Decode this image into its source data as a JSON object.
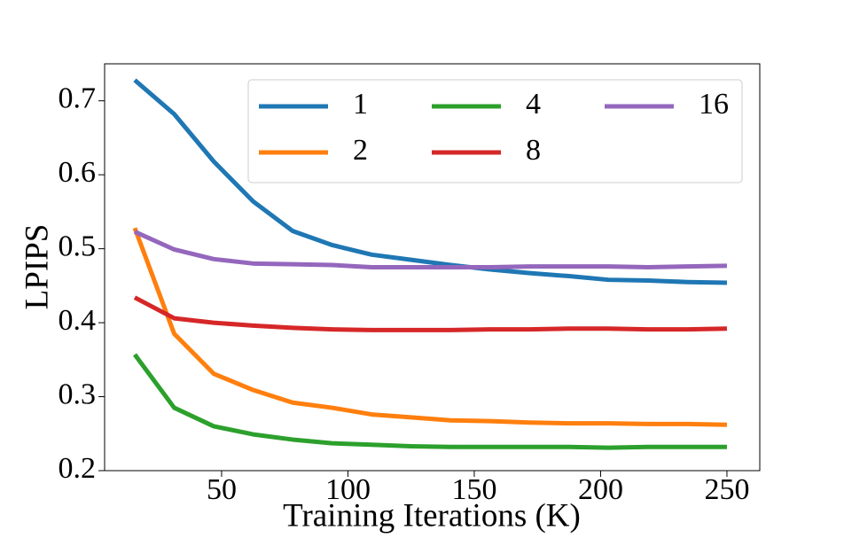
{
  "chart_data": {
    "type": "line",
    "xlabel": "Training Iterations (K)",
    "ylabel": "LPIPS",
    "x": [
      15.625,
      31.25,
      46.875,
      62.5,
      78.125,
      93.75,
      109.375,
      125,
      140.625,
      156.25,
      171.875,
      187.5,
      203.125,
      218.75,
      234.375,
      250
    ],
    "series": [
      {
        "name": "1",
        "color": "#1f77b4",
        "values": [
          0.728,
          0.682,
          0.618,
          0.564,
          0.524,
          0.505,
          0.492,
          0.485,
          0.478,
          0.472,
          0.467,
          0.463,
          0.458,
          0.457,
          0.455,
          0.454
        ]
      },
      {
        "name": "2",
        "color": "#ff7f0e",
        "values": [
          0.528,
          0.385,
          0.331,
          0.309,
          0.292,
          0.285,
          0.276,
          0.272,
          0.268,
          0.267,
          0.265,
          0.264,
          0.264,
          0.263,
          0.263,
          0.262
        ]
      },
      {
        "name": "4",
        "color": "#2ca02c",
        "values": [
          0.357,
          0.285,
          0.26,
          0.249,
          0.242,
          0.237,
          0.235,
          0.233,
          0.232,
          0.232,
          0.232,
          0.232,
          0.231,
          0.232,
          0.232,
          0.232
        ]
      },
      {
        "name": "8",
        "color": "#d62728",
        "values": [
          0.434,
          0.406,
          0.4,
          0.396,
          0.393,
          0.391,
          0.39,
          0.39,
          0.39,
          0.391,
          0.391,
          0.392,
          0.392,
          0.391,
          0.391,
          0.392
        ]
      },
      {
        "name": "16",
        "color": "#9467bd",
        "values": [
          0.523,
          0.499,
          0.486,
          0.48,
          0.479,
          0.478,
          0.475,
          0.475,
          0.475,
          0.475,
          0.476,
          0.476,
          0.476,
          0.475,
          0.476,
          0.477
        ]
      }
    ],
    "xlim": [
      3.7,
      263
    ],
    "ylim": [
      0.2,
      0.75
    ],
    "xticks": [
      50,
      100,
      150,
      200,
      250
    ],
    "yticks": [
      0.2,
      0.3,
      0.4,
      0.5,
      0.6,
      0.7
    ],
    "legend": "upper right",
    "legend_columns": 3
  }
}
